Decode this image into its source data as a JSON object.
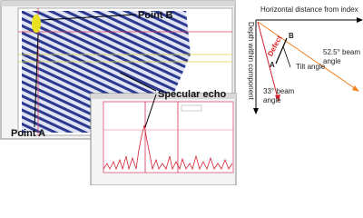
{
  "callouts": {
    "point_b": "Point B",
    "point_a": "Point A",
    "specular_echo": "Specular echo"
  },
  "diagram": {
    "horizontal_axis": "Horizontal distance from index",
    "vertical_axis": "Depth within component",
    "defect": "Defect",
    "point_b": "B",
    "point_a": "A",
    "tilt_angle": "Tilt angle",
    "beam_52": [
      "52.5° beam",
      "angle"
    ],
    "beam_33": [
      "33° beam",
      "angle"
    ]
  }
}
